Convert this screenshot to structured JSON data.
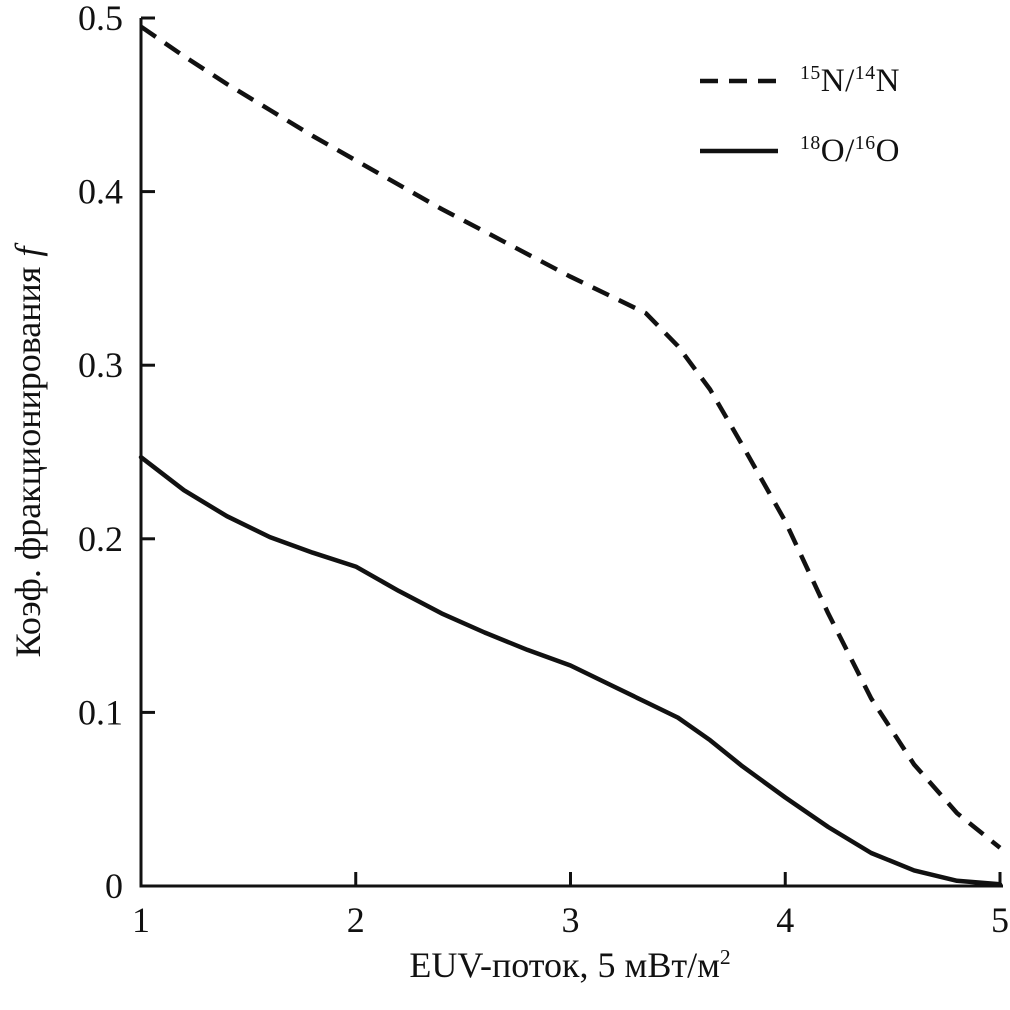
{
  "figure": {
    "background": "#ffffff",
    "line_color": "#111111"
  },
  "axes": {
    "xlabel_main": "EUV-поток, 5 мВт/м",
    "xlabel_sup": "2",
    "ylabel_main": "Коэф. фракционирования",
    "ylabel_italic": "f",
    "x_ticks": [
      {
        "value": 1,
        "label": "1"
      },
      {
        "value": 2,
        "label": "2"
      },
      {
        "value": 3,
        "label": "3"
      },
      {
        "value": 4,
        "label": "4"
      },
      {
        "value": 5,
        "label": "5"
      }
    ],
    "y_ticks": [
      {
        "value": 0.0,
        "label": "0"
      },
      {
        "value": 0.1,
        "label": "0.1"
      },
      {
        "value": 0.2,
        "label": "0.2"
      },
      {
        "value": 0.3,
        "label": "0.3"
      },
      {
        "value": 0.4,
        "label": "0.4"
      },
      {
        "value": 0.5,
        "label": "0.5"
      }
    ]
  },
  "legend": {
    "items": [
      {
        "name": "15N/14N",
        "style": "dashed",
        "sup1": "15",
        "base1": "N",
        "slash": "/",
        "sup2": "14",
        "base2": "N"
      },
      {
        "name": "18O/16O",
        "style": "solid",
        "sup1": "18",
        "base1": "O",
        "slash": "/",
        "sup2": "16",
        "base2": "O"
      }
    ]
  },
  "chart_data": {
    "type": "line",
    "title": "",
    "xlabel": "EUV-поток, 5 мВт/м²",
    "ylabel": "Коэф. фракционирования f",
    "xlim": [
      1,
      5
    ],
    "ylim": [
      0,
      0.5
    ],
    "grid": false,
    "legend_position": "top-right",
    "series": [
      {
        "name": "15N/14N",
        "style": "dashed",
        "x": [
          1.0,
          1.2,
          1.4,
          1.6,
          1.8,
          2.0,
          2.2,
          2.4,
          2.6,
          2.8,
          3.0,
          3.2,
          3.35,
          3.5,
          3.65,
          3.8,
          4.0,
          4.2,
          4.4,
          4.6,
          4.8,
          5.0
        ],
        "y": [
          0.495,
          0.478,
          0.462,
          0.447,
          0.432,
          0.418,
          0.404,
          0.39,
          0.377,
          0.364,
          0.351,
          0.339,
          0.33,
          0.311,
          0.286,
          0.254,
          0.21,
          0.157,
          0.108,
          0.07,
          0.042,
          0.022
        ]
      },
      {
        "name": "18O/16O",
        "style": "solid",
        "x": [
          1.0,
          1.2,
          1.4,
          1.6,
          1.8,
          2.0,
          2.2,
          2.4,
          2.6,
          2.8,
          3.0,
          3.2,
          3.35,
          3.5,
          3.65,
          3.8,
          4.0,
          4.2,
          4.4,
          4.6,
          4.8,
          5.0
        ],
        "y": [
          0.247,
          0.228,
          0.213,
          0.201,
          0.192,
          0.184,
          0.17,
          0.157,
          0.146,
          0.136,
          0.127,
          0.115,
          0.106,
          0.097,
          0.084,
          0.069,
          0.051,
          0.034,
          0.019,
          0.009,
          0.003,
          0.001
        ]
      }
    ]
  }
}
